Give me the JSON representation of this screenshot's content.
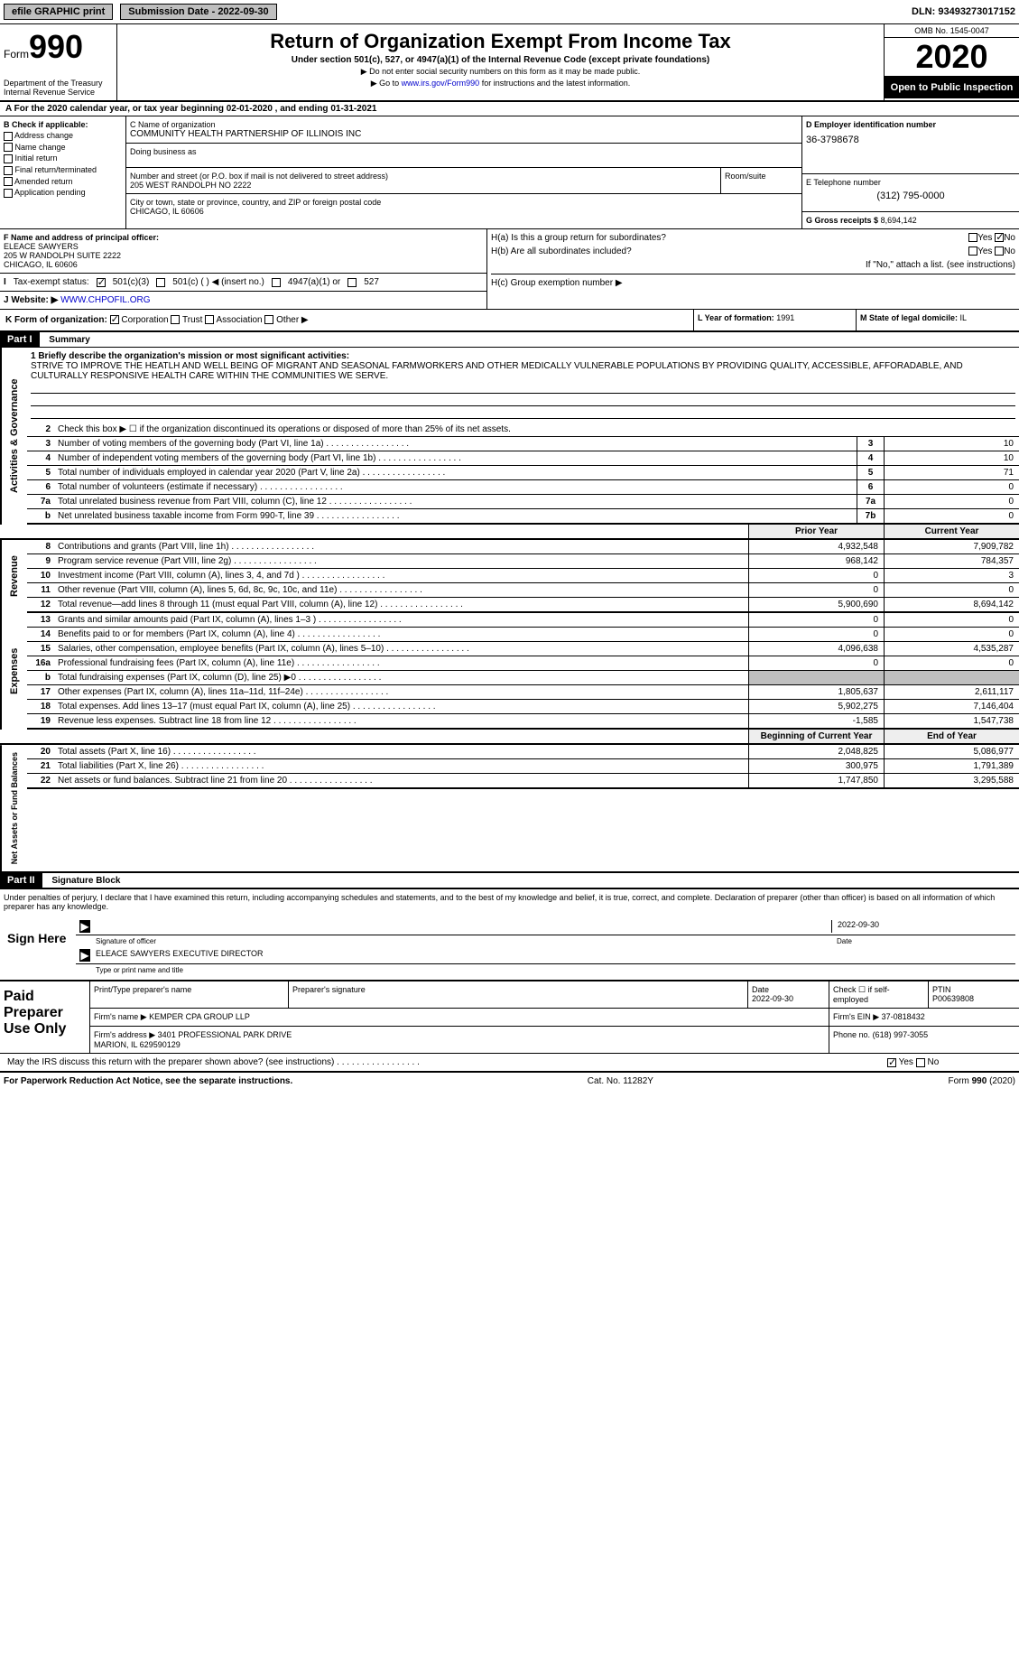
{
  "topbar": {
    "efile": "efile GRAPHIC print",
    "sub_label": "Submission Date - 2022-09-30",
    "dln": "DLN: 93493273017152"
  },
  "header": {
    "form_prefix": "Form",
    "form_num": "990",
    "title": "Return of Organization Exempt From Income Tax",
    "subtitle": "Under section 501(c), 527, or 4947(a)(1) of the Internal Revenue Code (except private foundations)",
    "note1": "▶ Do not enter social security numbers on this form as it may be made public.",
    "note2_pre": "▶ Go to ",
    "note2_link": "www.irs.gov/Form990",
    "note2_post": " for instructions and the latest information.",
    "dept": "Department of the Treasury\nInternal Revenue Service",
    "omb": "OMB No. 1545-0047",
    "year": "2020",
    "open": "Open to Public Inspection"
  },
  "period": "A For the 2020 calendar year, or tax year beginning 02-01-2020   , and ending 01-31-2021",
  "sec_b": {
    "title": "B Check if applicable:",
    "items": [
      "Address change",
      "Name change",
      "Initial return",
      "Final return/terminated",
      "Amended return",
      "Application pending"
    ]
  },
  "sec_c": {
    "name_label": "C Name of organization",
    "name": "COMMUNITY HEALTH PARTNERSHIP OF ILLINOIS INC",
    "dba": "Doing business as",
    "addr_label": "Number and street (or P.O. box if mail is not delivered to street address)",
    "addr": "205 WEST RANDOLPH NO 2222",
    "room": "Room/suite",
    "city_label": "City or town, state or province, country, and ZIP or foreign postal code",
    "city": "CHICAGO, IL  60606"
  },
  "sec_d": {
    "ein_label": "D Employer identification number",
    "ein": "36-3798678",
    "tel_label": "E Telephone number",
    "tel": "(312) 795-0000",
    "gross_label": "G Gross receipts $",
    "gross": "8,694,142"
  },
  "sec_f": {
    "label": "F  Name and address of principal officer:",
    "name": "ELEACE SAWYERS",
    "addr": "205 W RANDOLPH SUITE 2222\nCHICAGO, IL  60606"
  },
  "sec_h": {
    "ha": "H(a)  Is this a group return for subordinates?",
    "hb": "H(b)  Are all subordinates included?",
    "hb_note": "If \"No,\" attach a list. (see instructions)",
    "hc": "H(c)  Group exemption number ▶"
  },
  "sec_i": {
    "label": "Tax-exempt status:",
    "opt1": "501(c)(3)",
    "opt2": "501(c) (  ) ◀ (insert no.)",
    "opt3": "4947(a)(1) or",
    "opt4": "527"
  },
  "sec_j": {
    "label": "J Website: ▶ ",
    "url": "WWW.CHPOFIL.ORG"
  },
  "sec_k": "K Form of organization:",
  "sec_k_opts": [
    "Corporation",
    "Trust",
    "Association",
    "Other ▶"
  ],
  "sec_l": {
    "label": "L Year of formation:",
    "val": "1991"
  },
  "sec_m": {
    "label": "M State of legal domicile:",
    "val": "IL"
  },
  "part1": {
    "hdr": "Part I",
    "title": "Summary",
    "mission_label": "1  Briefly describe the organization's mission or most significant activities:",
    "mission": "STRIVE TO IMPROVE THE HEATLH AND WELL BEING OF MIGRANT AND SEASONAL FARMWORKERS AND OTHER MEDICALLY VULNERABLE POPULATIONS BY PROVIDING QUALITY, ACCESSIBLE, AFFORADABLE, AND CULTURALLY RESPONSIVE HEALTH CARE WITHIN THE COMMUNITIES WE SERVE.",
    "line2": "Check this box ▶ ☐  if the organization discontinued its operations or disposed of more than 25% of its net assets.",
    "lines_gov": [
      {
        "n": "3",
        "d": "Number of voting members of the governing body (Part VI, line 1a)",
        "b": "3",
        "v": "10"
      },
      {
        "n": "4",
        "d": "Number of independent voting members of the governing body (Part VI, line 1b)",
        "b": "4",
        "v": "10"
      },
      {
        "n": "5",
        "d": "Total number of individuals employed in calendar year 2020 (Part V, line 2a)",
        "b": "5",
        "v": "71"
      },
      {
        "n": "6",
        "d": "Total number of volunteers (estimate if necessary)",
        "b": "6",
        "v": "0"
      },
      {
        "n": "7a",
        "d": "Total unrelated business revenue from Part VIII, column (C), line 12",
        "b": "7a",
        "v": "0"
      },
      {
        "n": "b",
        "d": "Net unrelated business taxable income from Form 990-T, line 39",
        "b": "7b",
        "v": "0"
      }
    ],
    "col_hdr": {
      "py": "Prior Year",
      "cy": "Current Year"
    },
    "lines_rev": [
      {
        "n": "8",
        "d": "Contributions and grants (Part VIII, line 1h)",
        "py": "4,932,548",
        "cy": "7,909,782"
      },
      {
        "n": "9",
        "d": "Program service revenue (Part VIII, line 2g)",
        "py": "968,142",
        "cy": "784,357"
      },
      {
        "n": "10",
        "d": "Investment income (Part VIII, column (A), lines 3, 4, and 7d )",
        "py": "0",
        "cy": "3"
      },
      {
        "n": "11",
        "d": "Other revenue (Part VIII, column (A), lines 5, 6d, 8c, 9c, 10c, and 11e)",
        "py": "0",
        "cy": "0"
      },
      {
        "n": "12",
        "d": "Total revenue—add lines 8 through 11 (must equal Part VIII, column (A), line 12)",
        "py": "5,900,690",
        "cy": "8,694,142"
      }
    ],
    "lines_exp": [
      {
        "n": "13",
        "d": "Grants and similar amounts paid (Part IX, column (A), lines 1–3 )",
        "py": "0",
        "cy": "0"
      },
      {
        "n": "14",
        "d": "Benefits paid to or for members (Part IX, column (A), line 4)",
        "py": "0",
        "cy": "0"
      },
      {
        "n": "15",
        "d": "Salaries, other compensation, employee benefits (Part IX, column (A), lines 5–10)",
        "py": "4,096,638",
        "cy": "4,535,287"
      },
      {
        "n": "16a",
        "d": "Professional fundraising fees (Part IX, column (A), line 11e)",
        "py": "0",
        "cy": "0"
      },
      {
        "n": "b",
        "d": "Total fundraising expenses (Part IX, column (D), line 25) ▶0",
        "py": "",
        "cy": "",
        "gray": true
      },
      {
        "n": "17",
        "d": "Other expenses (Part IX, column (A), lines 11a–11d, 11f–24e)",
        "py": "1,805,637",
        "cy": "2,611,117"
      },
      {
        "n": "18",
        "d": "Total expenses. Add lines 13–17 (must equal Part IX, column (A), line 25)",
        "py": "5,902,275",
        "cy": "7,146,404"
      },
      {
        "n": "19",
        "d": "Revenue less expenses. Subtract line 18 from line 12",
        "py": "-1,585",
        "cy": "1,547,738"
      }
    ],
    "col_hdr2": {
      "py": "Beginning of Current Year",
      "cy": "End of Year"
    },
    "lines_net": [
      {
        "n": "20",
        "d": "Total assets (Part X, line 16)",
        "py": "2,048,825",
        "cy": "5,086,977"
      },
      {
        "n": "21",
        "d": "Total liabilities (Part X, line 26)",
        "py": "300,975",
        "cy": "1,791,389"
      },
      {
        "n": "22",
        "d": "Net assets or fund balances. Subtract line 21 from line 20",
        "py": "1,747,850",
        "cy": "3,295,588"
      }
    ],
    "vtabs": {
      "gov": "Activities & Governance",
      "rev": "Revenue",
      "exp": "Expenses",
      "net": "Net Assets or Fund Balances"
    }
  },
  "part2": {
    "hdr": "Part II",
    "title": "Signature Block",
    "decl": "Under penalties of perjury, I declare that I have examined this return, including accompanying schedules and statements, and to the best of my knowledge and belief, it is true, correct, and complete. Declaration of preparer (other than officer) is based on all information of which preparer has any knowledge.",
    "sign_here": "Sign Here",
    "sig_of": "Signature of officer",
    "sig_date": "2022-09-30",
    "sig_date_lbl": "Date",
    "sig_name": "ELEACE SAWYERS  EXECUTIVE DIRECTOR",
    "sig_name_lbl": "Type or print name and title",
    "paid": "Paid Preparer Use Only",
    "prep_name_lbl": "Print/Type preparer's name",
    "prep_sig_lbl": "Preparer's signature",
    "prep_date_lbl": "Date",
    "prep_date": "2022-09-30",
    "self_emp": "Check ☐ if self-employed",
    "ptin_lbl": "PTIN",
    "ptin": "P00639808",
    "firm_name_lbl": "Firm's name    ▶",
    "firm_name": "KEMPER CPA GROUP LLP",
    "firm_ein_lbl": "Firm's EIN ▶",
    "firm_ein": "37-0818432",
    "firm_addr_lbl": "Firm's address ▶",
    "firm_addr": "3401 PROFESSIONAL PARK DRIVE\nMARION, IL  629590129",
    "phone_lbl": "Phone no.",
    "phone": "(618) 997-3055",
    "discuss": "May the IRS discuss this return with the preparer shown above? (see instructions)"
  },
  "footer": {
    "left": "For Paperwork Reduction Act Notice, see the separate instructions.",
    "mid": "Cat. No. 11282Y",
    "right": "Form 990 (2020)"
  },
  "yes": "Yes",
  "no": "No"
}
